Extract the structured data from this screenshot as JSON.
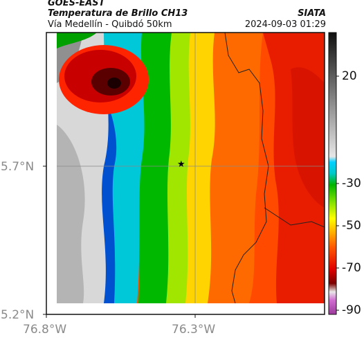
{
  "header": {
    "satellite": "GOES-EAST",
    "product": "Temperatura de Brillo CH13",
    "route": "Vía Medellín - Quibdó 50km",
    "agency": "SIATA",
    "datetime": "2024-09-03 01:29"
  },
  "axes": {
    "lat_labels": [
      "5.7°N",
      "5.2°N"
    ],
    "lon_labels": [
      "76.8°W",
      "76.3°W"
    ]
  },
  "colorbar": {
    "tick_labels": [
      "20",
      "-30",
      "-50",
      "-70",
      "-90"
    ]
  },
  "marker": {
    "symbol": "★"
  }
}
